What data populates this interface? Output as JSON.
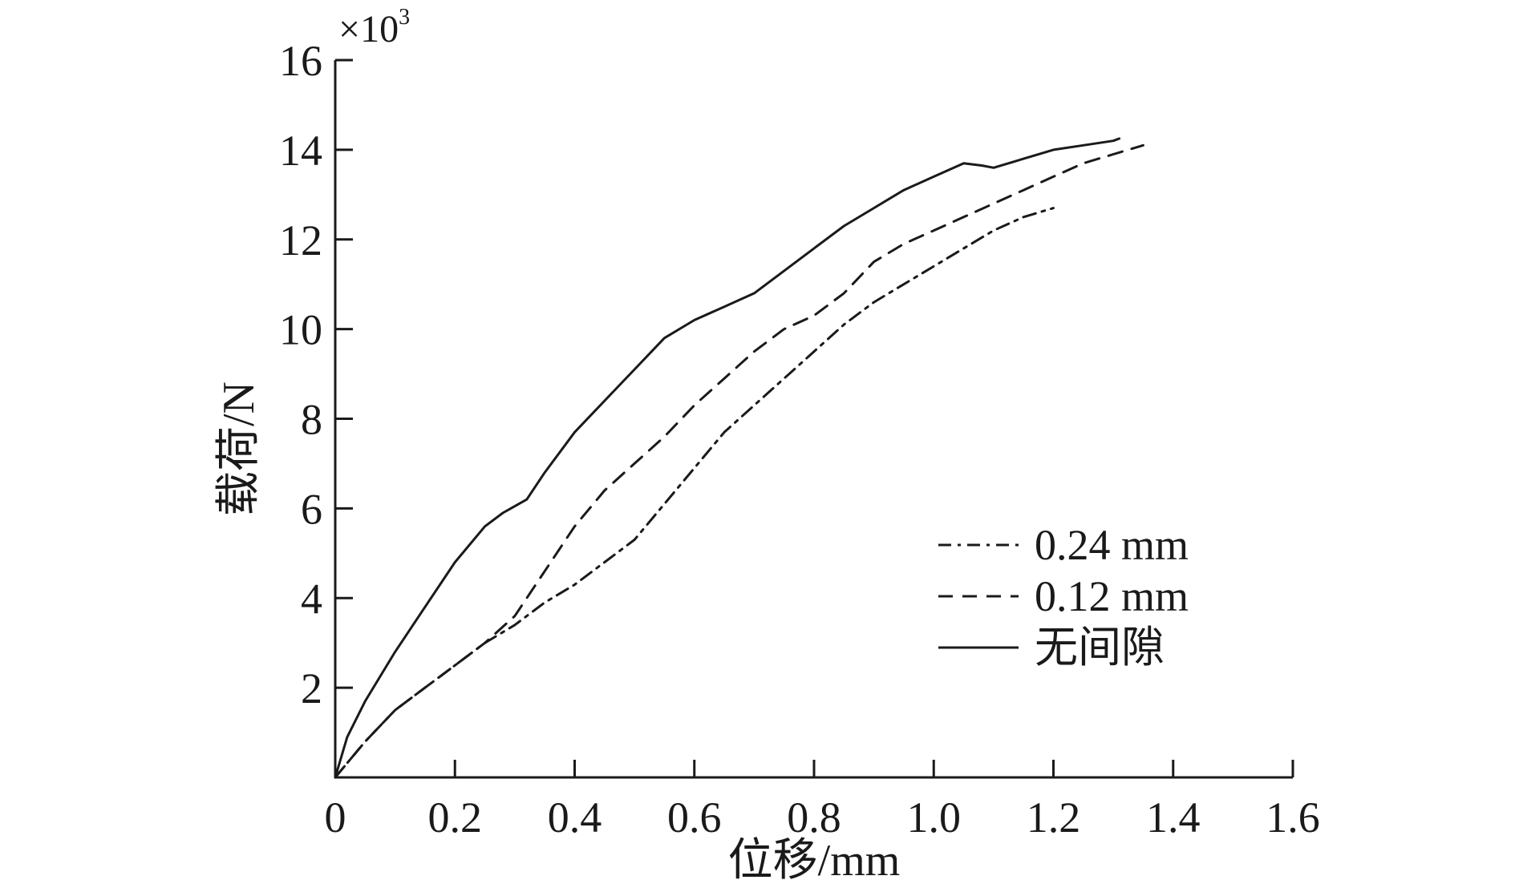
{
  "chart_data": {
    "type": "line",
    "xlabel": "位移/mm",
    "ylabel": "载荷/N",
    "y_multiplier": {
      "base": "×10",
      "exponent": "3"
    },
    "xlim": [
      0,
      1.6
    ],
    "ylim": [
      0,
      16
    ],
    "xticks": [
      0,
      0.2,
      0.4,
      0.6,
      0.8,
      1.0,
      1.2,
      1.4,
      1.6
    ],
    "xtick_labels": [
      "0",
      "0.2",
      "0.4",
      "0.6",
      "0.8",
      "1.0",
      "1.2",
      "1.4",
      "1.6"
    ],
    "yticks": [
      2,
      4,
      6,
      8,
      10,
      12,
      14,
      16
    ],
    "ytick_labels": [
      "2",
      "4",
      "6",
      "8",
      "10",
      "12",
      "14",
      "16"
    ],
    "grid": false,
    "legend_position": "bottom-right",
    "series": [
      {
        "name": "0.24 mm",
        "style": "dashdot",
        "color": "#1a1a1a",
        "x": [
          0,
          0.05,
          0.1,
          0.15,
          0.2,
          0.25,
          0.3,
          0.35,
          0.4,
          0.45,
          0.5,
          0.55,
          0.6,
          0.65,
          0.7,
          0.75,
          0.8,
          0.85,
          0.9,
          0.95,
          1.0,
          1.05,
          1.1,
          1.15,
          1.2
        ],
        "y": [
          0,
          0.8,
          1.5,
          2.0,
          2.5,
          3.0,
          3.4,
          3.9,
          4.3,
          4.8,
          5.3,
          6.1,
          6.9,
          7.7,
          8.3,
          8.9,
          9.5,
          10.1,
          10.6,
          11.0,
          11.4,
          11.8,
          12.2,
          12.5,
          12.7
        ]
      },
      {
        "name": "0.12 mm",
        "style": "dashed",
        "color": "#1a1a1a",
        "x": [
          0,
          0.05,
          0.1,
          0.15,
          0.2,
          0.25,
          0.3,
          0.35,
          0.4,
          0.45,
          0.5,
          0.55,
          0.6,
          0.65,
          0.7,
          0.75,
          0.8,
          0.85,
          0.9,
          0.95,
          1.0,
          1.05,
          1.1,
          1.15,
          1.2,
          1.25,
          1.3,
          1.35
        ],
        "y": [
          0,
          0.8,
          1.5,
          2.0,
          2.5,
          3.0,
          3.6,
          4.6,
          5.6,
          6.4,
          7.0,
          7.6,
          8.3,
          8.9,
          9.5,
          10.0,
          10.3,
          10.8,
          11.5,
          11.9,
          12.2,
          12.5,
          12.8,
          13.1,
          13.4,
          13.7,
          13.9,
          14.1
        ]
      },
      {
        "name": "无间隙",
        "style": "solid",
        "color": "#1a1a1a",
        "x": [
          0,
          0.02,
          0.05,
          0.1,
          0.15,
          0.2,
          0.25,
          0.28,
          0.32,
          0.35,
          0.4,
          0.45,
          0.5,
          0.55,
          0.6,
          0.65,
          0.7,
          0.75,
          0.8,
          0.85,
          0.9,
          0.95,
          1.0,
          1.05,
          1.08,
          1.1,
          1.15,
          1.2,
          1.25,
          1.3,
          1.31
        ],
        "y": [
          0,
          0.9,
          1.7,
          2.8,
          3.8,
          4.8,
          5.6,
          5.9,
          6.2,
          6.8,
          7.7,
          8.4,
          9.1,
          9.8,
          10.2,
          10.5,
          10.8,
          11.3,
          11.8,
          12.3,
          12.7,
          13.1,
          13.4,
          13.7,
          13.65,
          13.6,
          13.8,
          14.0,
          14.1,
          14.2,
          14.25
        ]
      }
    ]
  }
}
